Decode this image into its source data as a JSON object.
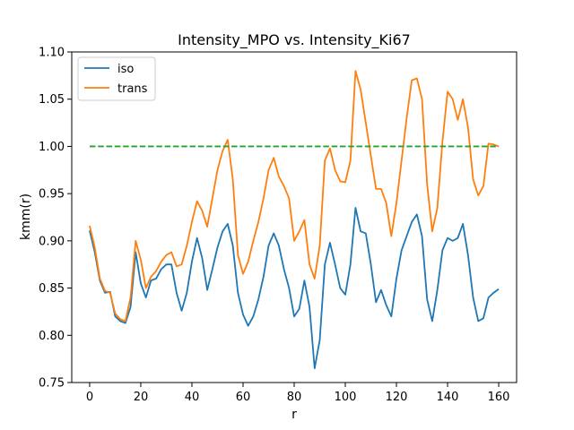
{
  "chart_data": {
    "type": "line",
    "title": "Intensity_MPO vs. Intensity_Ki67",
    "xlabel": "r",
    "ylabel": "kmm(r)",
    "xlim": [
      -7,
      167
    ],
    "ylim": [
      0.75,
      1.1
    ],
    "xticks": [
      0,
      20,
      40,
      60,
      80,
      100,
      120,
      140,
      160
    ],
    "yticks": [
      0.75,
      0.8,
      0.85,
      0.9,
      0.95,
      1.0,
      1.05,
      1.1
    ],
    "xtick_labels": [
      "0",
      "20",
      "40",
      "60",
      "80",
      "100",
      "120",
      "140",
      "160"
    ],
    "ytick_labels": [
      "0.75",
      "0.80",
      "0.85",
      "0.90",
      "0.95",
      "1.00",
      "1.05",
      "1.10"
    ],
    "grid": false,
    "legend_position": "upper-left",
    "series": [
      {
        "name": "iso",
        "color": "#1f77b4",
        "style": "solid",
        "points": [
          [
            0,
            0.911
          ],
          [
            2,
            0.888
          ],
          [
            4,
            0.858
          ],
          [
            6,
            0.845
          ],
          [
            8,
            0.846
          ],
          [
            10,
            0.82
          ],
          [
            12,
            0.815
          ],
          [
            14,
            0.813
          ],
          [
            16,
            0.83
          ],
          [
            18,
            0.888
          ],
          [
            20,
            0.855
          ],
          [
            22,
            0.84
          ],
          [
            24,
            0.858
          ],
          [
            26,
            0.86
          ],
          [
            28,
            0.87
          ],
          [
            30,
            0.875
          ],
          [
            32,
            0.875
          ],
          [
            34,
            0.845
          ],
          [
            36,
            0.826
          ],
          [
            38,
            0.845
          ],
          [
            40,
            0.878
          ],
          [
            42,
            0.903
          ],
          [
            44,
            0.882
          ],
          [
            46,
            0.848
          ],
          [
            48,
            0.87
          ],
          [
            50,
            0.893
          ],
          [
            52,
            0.91
          ],
          [
            54,
            0.918
          ],
          [
            56,
            0.895
          ],
          [
            58,
            0.845
          ],
          [
            60,
            0.822
          ],
          [
            62,
            0.81
          ],
          [
            64,
            0.82
          ],
          [
            66,
            0.838
          ],
          [
            68,
            0.862
          ],
          [
            70,
            0.895
          ],
          [
            72,
            0.908
          ],
          [
            74,
            0.895
          ],
          [
            76,
            0.87
          ],
          [
            78,
            0.85
          ],
          [
            80,
            0.82
          ],
          [
            82,
            0.828
          ],
          [
            84,
            0.858
          ],
          [
            86,
            0.83
          ],
          [
            88,
            0.765
          ],
          [
            90,
            0.795
          ],
          [
            92,
            0.875
          ],
          [
            94,
            0.898
          ],
          [
            96,
            0.875
          ],
          [
            98,
            0.85
          ],
          [
            100,
            0.843
          ],
          [
            102,
            0.875
          ],
          [
            104,
            0.935
          ],
          [
            106,
            0.91
          ],
          [
            108,
            0.908
          ],
          [
            110,
            0.875
          ],
          [
            112,
            0.835
          ],
          [
            114,
            0.848
          ],
          [
            116,
            0.832
          ],
          [
            118,
            0.82
          ],
          [
            120,
            0.86
          ],
          [
            122,
            0.89
          ],
          [
            124,
            0.905
          ],
          [
            126,
            0.92
          ],
          [
            128,
            0.928
          ],
          [
            130,
            0.905
          ],
          [
            132,
            0.838
          ],
          [
            134,
            0.815
          ],
          [
            136,
            0.848
          ],
          [
            138,
            0.89
          ],
          [
            140,
            0.903
          ],
          [
            142,
            0.9
          ],
          [
            144,
            0.903
          ],
          [
            146,
            0.918
          ],
          [
            148,
            0.885
          ],
          [
            150,
            0.84
          ],
          [
            152,
            0.815
          ],
          [
            154,
            0.818
          ],
          [
            156,
            0.84
          ],
          [
            158,
            0.845
          ],
          [
            160,
            0.849
          ]
        ]
      },
      {
        "name": "trans",
        "color": "#ff7f0e",
        "style": "solid",
        "points": [
          [
            0,
            0.916
          ],
          [
            2,
            0.893
          ],
          [
            4,
            0.86
          ],
          [
            6,
            0.847
          ],
          [
            8,
            0.845
          ],
          [
            10,
            0.823
          ],
          [
            12,
            0.817
          ],
          [
            14,
            0.815
          ],
          [
            16,
            0.84
          ],
          [
            18,
            0.9
          ],
          [
            20,
            0.88
          ],
          [
            22,
            0.85
          ],
          [
            24,
            0.862
          ],
          [
            26,
            0.868
          ],
          [
            28,
            0.878
          ],
          [
            30,
            0.885
          ],
          [
            32,
            0.888
          ],
          [
            34,
            0.873
          ],
          [
            36,
            0.875
          ],
          [
            38,
            0.895
          ],
          [
            40,
            0.92
          ],
          [
            42,
            0.942
          ],
          [
            44,
            0.932
          ],
          [
            46,
            0.915
          ],
          [
            48,
            0.945
          ],
          [
            50,
            0.975
          ],
          [
            52,
            0.995
          ],
          [
            54,
            1.007
          ],
          [
            56,
            0.965
          ],
          [
            58,
            0.885
          ],
          [
            60,
            0.865
          ],
          [
            62,
            0.878
          ],
          [
            64,
            0.9
          ],
          [
            66,
            0.92
          ],
          [
            68,
            0.945
          ],
          [
            70,
            0.975
          ],
          [
            72,
            0.988
          ],
          [
            74,
            0.968
          ],
          [
            76,
            0.958
          ],
          [
            78,
            0.945
          ],
          [
            80,
            0.9
          ],
          [
            82,
            0.91
          ],
          [
            84,
            0.922
          ],
          [
            86,
            0.875
          ],
          [
            88,
            0.86
          ],
          [
            90,
            0.895
          ],
          [
            92,
            0.985
          ],
          [
            94,
            0.998
          ],
          [
            96,
            0.975
          ],
          [
            98,
            0.963
          ],
          [
            100,
            0.962
          ],
          [
            102,
            0.985
          ],
          [
            104,
            1.08
          ],
          [
            106,
            1.06
          ],
          [
            108,
            1.025
          ],
          [
            110,
            0.99
          ],
          [
            112,
            0.955
          ],
          [
            114,
            0.955
          ],
          [
            116,
            0.94
          ],
          [
            118,
            0.905
          ],
          [
            120,
            0.94
          ],
          [
            122,
            0.985
          ],
          [
            124,
            1.03
          ],
          [
            126,
            1.07
          ],
          [
            128,
            1.072
          ],
          [
            130,
            1.05
          ],
          [
            132,
            0.96
          ],
          [
            134,
            0.91
          ],
          [
            136,
            0.935
          ],
          [
            138,
            1.005
          ],
          [
            140,
            1.058
          ],
          [
            142,
            1.05
          ],
          [
            144,
            1.028
          ],
          [
            146,
            1.05
          ],
          [
            148,
            1.02
          ],
          [
            150,
            0.965
          ],
          [
            152,
            0.948
          ],
          [
            154,
            0.958
          ],
          [
            156,
            1.003
          ],
          [
            158,
            1.002
          ],
          [
            160,
            1.0
          ]
        ]
      },
      {
        "name": "",
        "color": "#2ca02c",
        "style": "dashed",
        "points": [
          [
            0,
            1.0
          ],
          [
            160,
            1.0
          ]
        ]
      }
    ]
  }
}
